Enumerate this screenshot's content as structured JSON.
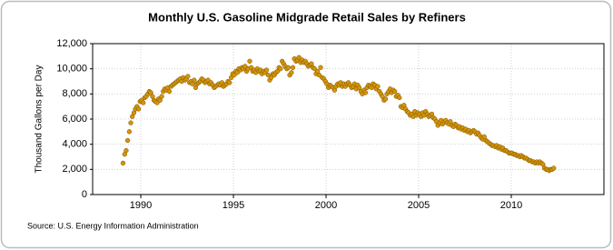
{
  "chart_data": {
    "type": "scatter",
    "title": "Monthly U.S. Gasoline Midgrade Retail Sales by Refiners",
    "y_label": "Thousand Gallons per Day",
    "source": "Source: U.S. Energy Information Administration",
    "color": "#d4950a",
    "grid": true,
    "xlim": [
      1987.4,
      2015
    ],
    "xticks": [
      1990,
      1995,
      2000,
      2005,
      2010
    ],
    "ylim": [
      0,
      12000
    ],
    "yticks": [
      0,
      {
        "value": 2000,
        "label": "2,000"
      },
      {
        "value": 4000,
        "label": "4,000"
      },
      {
        "value": 6000,
        "label": "6,000"
      },
      {
        "value": 8000,
        "label": "8,000"
      },
      {
        "value": 10000,
        "label": "10,000"
      },
      {
        "value": 12000,
        "label": "12,000"
      }
    ],
    "x": [
      1989.04,
      1989.13,
      1989.21,
      1989.29,
      1989.38,
      1989.46,
      1989.54,
      1989.63,
      1989.71,
      1989.79,
      1989.88,
      1989.96,
      1990.04,
      1990.13,
      1990.21,
      1990.29,
      1990.38,
      1990.46,
      1990.54,
      1990.63,
      1990.71,
      1990.79,
      1990.88,
      1990.96,
      1991.04,
      1991.13,
      1991.21,
      1991.29,
      1991.38,
      1991.46,
      1991.54,
      1991.63,
      1991.71,
      1991.79,
      1991.88,
      1991.96,
      1992.04,
      1992.13,
      1992.21,
      1992.29,
      1992.38,
      1992.46,
      1992.54,
      1992.63,
      1992.71,
      1992.79,
      1992.88,
      1992.96,
      1993.04,
      1993.13,
      1993.21,
      1993.29,
      1993.38,
      1993.46,
      1993.54,
      1993.63,
      1993.71,
      1993.79,
      1993.88,
      1993.96,
      1994.04,
      1994.13,
      1994.21,
      1994.29,
      1994.38,
      1994.46,
      1994.54,
      1994.63,
      1994.71,
      1994.79,
      1994.88,
      1994.96,
      1995.04,
      1995.13,
      1995.21,
      1995.29,
      1995.38,
      1995.46,
      1995.54,
      1995.63,
      1995.71,
      1995.79,
      1995.88,
      1995.96,
      1996.04,
      1996.13,
      1996.21,
      1996.29,
      1996.38,
      1996.46,
      1996.54,
      1996.63,
      1996.71,
      1996.79,
      1996.88,
      1996.96,
      1997.04,
      1997.13,
      1997.21,
      1997.29,
      1997.38,
      1997.46,
      1997.54,
      1997.63,
      1997.71,
      1997.79,
      1997.88,
      1997.96,
      1998.04,
      1998.13,
      1998.21,
      1998.29,
      1998.38,
      1998.46,
      1998.54,
      1998.63,
      1998.71,
      1998.79,
      1998.88,
      1998.96,
      1999.04,
      1999.13,
      1999.21,
      1999.29,
      1999.38,
      1999.46,
      1999.54,
      1999.63,
      1999.71,
      1999.79,
      1999.88,
      1999.96,
      2000.04,
      2000.13,
      2000.21,
      2000.29,
      2000.38,
      2000.46,
      2000.54,
      2000.63,
      2000.71,
      2000.79,
      2000.88,
      2000.96,
      2001.04,
      2001.13,
      2001.21,
      2001.29,
      2001.38,
      2001.46,
      2001.54,
      2001.63,
      2001.71,
      2001.79,
      2001.88,
      2001.96,
      2002.04,
      2002.13,
      2002.21,
      2002.29,
      2002.38,
      2002.46,
      2002.54,
      2002.63,
      2002.71,
      2002.79,
      2002.88,
      2002.96,
      2003.04,
      2003.13,
      2003.21,
      2003.29,
      2003.38,
      2003.46,
      2003.54,
      2003.63,
      2003.71,
      2003.79,
      2003.88,
      2003.96,
      2004.04,
      2004.13,
      2004.21,
      2004.29,
      2004.38,
      2004.46,
      2004.54,
      2004.63,
      2004.71,
      2004.79,
      2004.88,
      2004.96,
      2005.04,
      2005.13,
      2005.21,
      2005.29,
      2005.38,
      2005.46,
      2005.54,
      2005.63,
      2005.71,
      2005.79,
      2005.88,
      2005.96,
      2006.04,
      2006.13,
      2006.21,
      2006.29,
      2006.38,
      2006.46,
      2006.54,
      2006.63,
      2006.71,
      2006.79,
      2006.88,
      2006.96,
      2007.04,
      2007.13,
      2007.21,
      2007.29,
      2007.38,
      2007.46,
      2007.54,
      2007.63,
      2007.71,
      2007.79,
      2007.88,
      2007.96,
      2008.04,
      2008.13,
      2008.21,
      2008.29,
      2008.38,
      2008.46,
      2008.54,
      2008.63,
      2008.71,
      2008.79,
      2008.88,
      2008.96,
      2009.04,
      2009.13,
      2009.21,
      2009.29,
      2009.38,
      2009.46,
      2009.54,
      2009.63,
      2009.71,
      2009.79,
      2009.88,
      2009.96,
      2010.04,
      2010.13,
      2010.21,
      2010.29,
      2010.38,
      2010.46,
      2010.54,
      2010.63,
      2010.71,
      2010.79,
      2010.88,
      2010.96,
      2011.04,
      2011.13,
      2011.21,
      2011.29,
      2011.38,
      2011.46,
      2011.54,
      2011.63,
      2011.71,
      2011.79,
      2011.88,
      2011.96,
      2012.04,
      2012.13,
      2012.21,
      2012.29
    ],
    "values": [
      2500,
      3200,
      3500,
      4300,
      5000,
      5700,
      6200,
      6500,
      6800,
      7000,
      6800,
      7400,
      7500,
      7300,
      7700,
      7800,
      8000,
      8200,
      8100,
      7800,
      7500,
      7400,
      7300,
      7600,
      7500,
      7800,
      8200,
      8400,
      8300,
      8500,
      8200,
      8600,
      8700,
      8800,
      8900,
      9000,
      9100,
      9200,
      9000,
      9300,
      9100,
      9200,
      9400,
      8900,
      9000,
      8800,
      9100,
      8500,
      8800,
      8900,
      9000,
      9200,
      9100,
      8900,
      9000,
      9100,
      8800,
      8900,
      8700,
      8500,
      8600,
      8700,
      8800,
      8700,
      8900,
      8600,
      8700,
      8800,
      9000,
      8900,
      9300,
      9600,
      9500,
      9800,
      9700,
      10000,
      9900,
      10100,
      10000,
      10200,
      9800,
      10000,
      10600,
      10100,
      9800,
      9900,
      9700,
      10000,
      9800,
      9900,
      9600,
      9800,
      9700,
      9900,
      9500,
      9100,
      9300,
      9600,
      9500,
      9700,
      9800,
      10100,
      10000,
      10600,
      10400,
      10200,
      10000,
      10100,
      9500,
      9700,
      10100,
      10800,
      10600,
      10700,
      10900,
      10500,
      10700,
      10500,
      10600,
      10400,
      10200,
      10300,
      10400,
      10100,
      10000,
      9600,
      9800,
      9500,
      10100,
      9300,
      9200,
      9000,
      8800,
      8500,
      8700,
      8600,
      8500,
      8300,
      8600,
      8800,
      8700,
      8900,
      8600,
      8800,
      8600,
      8800,
      8900,
      8700,
      8500,
      8600,
      8800,
      8400,
      8700,
      8500,
      8200,
      8000,
      8300,
      8100,
      8500,
      8700,
      8600,
      8500,
      8800,
      8700,
      8400,
      8600,
      8200,
      8000,
      7800,
      7500,
      7600,
      8000,
      8200,
      8400,
      8100,
      8300,
      8200,
      7800,
      7900,
      7700,
      7000,
      6900,
      7100,
      6800,
      6600,
      6500,
      6300,
      6400,
      6200,
      6600,
      6300,
      6500,
      6400,
      6200,
      6500,
      6300,
      6600,
      6400,
      6200,
      6300,
      6400,
      6100,
      6000,
      5800,
      5500,
      5700,
      5900,
      5600,
      5800,
      5900,
      5700,
      5600,
      5800,
      5500,
      5400,
      5600,
      5500,
      5300,
      5400,
      5200,
      5300,
      5100,
      5200,
      5000,
      5100,
      4900,
      5000,
      5100,
      5000,
      4800,
      4900,
      4700,
      4500,
      4400,
      4600,
      4300,
      4200,
      4100,
      4000,
      3900,
      3900,
      3800,
      3900,
      3700,
      3800,
      3600,
      3700,
      3500,
      3500,
      3400,
      3300,
      3300,
      3300,
      3200,
      3200,
      3100,
      3100,
      3000,
      3100,
      3000,
      2900,
      2900,
      2800,
      2700,
      2700,
      2600,
      2600,
      2500,
      2600,
      2500,
      2600,
      2500,
      2400,
      2100,
      2000,
      2000,
      1900,
      2000,
      2000,
      2100
    ]
  }
}
